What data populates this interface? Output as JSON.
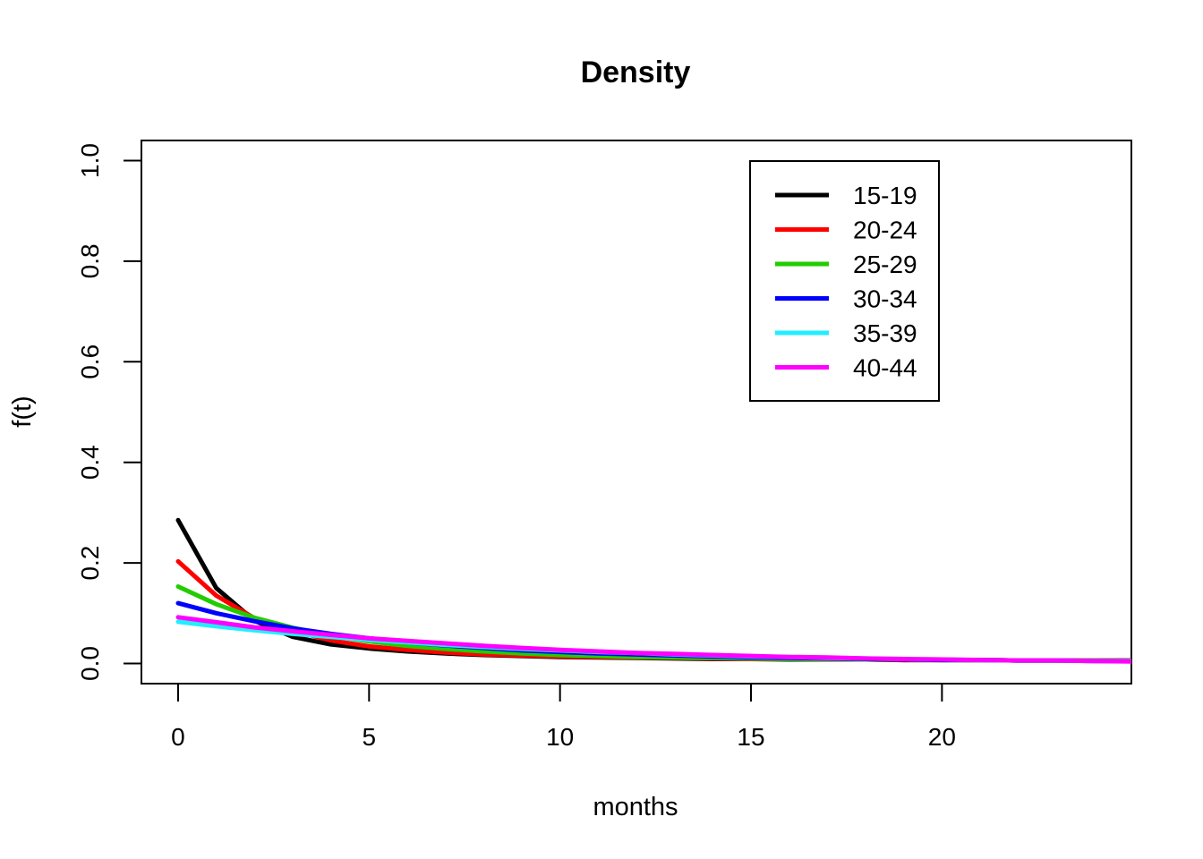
{
  "chart_data": {
    "type": "line",
    "title": "Density",
    "xlabel": "months",
    "ylabel": "f(t)",
    "xlim": [
      -0.96,
      24.96
    ],
    "ylim": [
      -0.04,
      1.04
    ],
    "xticks": [
      0,
      5,
      10,
      15,
      20
    ],
    "yticks": [
      0.0,
      0.2,
      0.4,
      0.6,
      0.8,
      1.0
    ],
    "ytick_labels": [
      "0.0",
      "0.2",
      "0.4",
      "0.6",
      "0.8",
      "1.0"
    ],
    "grid": false,
    "legend_position": "top-right",
    "x": [
      0,
      1,
      2,
      3,
      4,
      5,
      6,
      7,
      8,
      9,
      10,
      11,
      12,
      13,
      14,
      15,
      16,
      17,
      18,
      19,
      20,
      21,
      22,
      23,
      24,
      25
    ],
    "series": [
      {
        "name": "15-19",
        "color": "#000000",
        "values": [
          0.285,
          0.15,
          0.085,
          0.053,
          0.038,
          0.03,
          0.024,
          0.02,
          0.017,
          0.015,
          0.013,
          0.012,
          0.011,
          0.01,
          0.009,
          0.009,
          0.008,
          0.008,
          0.008,
          0.007,
          0.007,
          0.007,
          0.006,
          0.006,
          0.006,
          0.006
        ]
      },
      {
        "name": "20-24",
        "color": "#ff0000",
        "values": [
          0.203,
          0.135,
          0.09,
          0.065,
          0.046,
          0.034,
          0.027,
          0.022,
          0.018,
          0.016,
          0.014,
          0.013,
          0.012,
          0.011,
          0.01,
          0.009,
          0.009,
          0.008,
          0.008,
          0.007,
          0.007,
          0.007,
          0.006,
          0.006,
          0.006,
          0.006
        ]
      },
      {
        "name": "25-29",
        "color": "#22cc00",
        "values": [
          0.153,
          0.118,
          0.091,
          0.071,
          0.055,
          0.044,
          0.035,
          0.029,
          0.024,
          0.02,
          0.017,
          0.015,
          0.013,
          0.012,
          0.011,
          0.01,
          0.009,
          0.009,
          0.008,
          0.008,
          0.007,
          0.007,
          0.006,
          0.006,
          0.006,
          0.005
        ]
      },
      {
        "name": "30-34",
        "color": "#0000ff",
        "values": [
          0.12,
          0.1,
          0.084,
          0.07,
          0.059,
          0.05,
          0.042,
          0.036,
          0.031,
          0.026,
          0.023,
          0.02,
          0.018,
          0.016,
          0.014,
          0.012,
          0.011,
          0.01,
          0.009,
          0.008,
          0.007,
          0.007,
          0.006,
          0.006,
          0.005,
          0.005
        ]
      },
      {
        "name": "35-39",
        "color": "#22eeff",
        "values": [
          0.083,
          0.074,
          0.066,
          0.059,
          0.053,
          0.047,
          0.042,
          0.037,
          0.033,
          0.029,
          0.026,
          0.023,
          0.021,
          0.018,
          0.016,
          0.014,
          0.013,
          0.011,
          0.01,
          0.009,
          0.008,
          0.007,
          0.006,
          0.006,
          0.005,
          0.005
        ]
      },
      {
        "name": "40-44",
        "color": "#ff00ff",
        "values": [
          0.092,
          0.082,
          0.072,
          0.064,
          0.057,
          0.05,
          0.045,
          0.04,
          0.035,
          0.031,
          0.027,
          0.024,
          0.021,
          0.019,
          0.017,
          0.015,
          0.013,
          0.012,
          0.01,
          0.009,
          0.008,
          0.007,
          0.006,
          0.006,
          0.005,
          0.004
        ]
      }
    ]
  }
}
